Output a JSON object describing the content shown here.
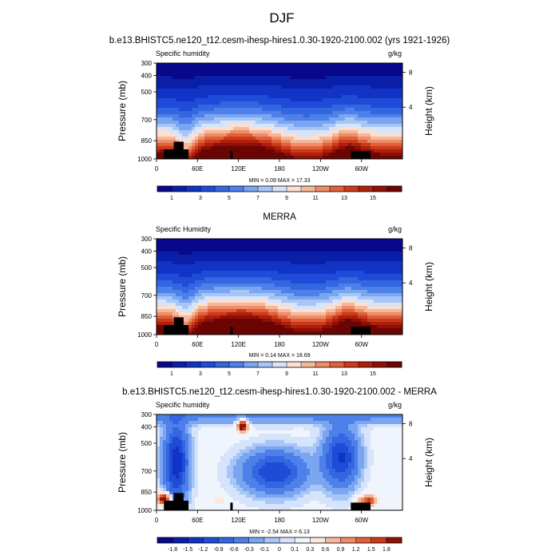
{
  "figure_title": "DJF",
  "chart_data": [
    {
      "type": "contour",
      "title": "b.e13.BHISTC5.ne120_t12.cesm-ihesp-hires1.0.30-1920-2100.002 (yrs 1921-1926)",
      "left_string": "Specific humidity",
      "right_string": "g/kg",
      "ylabel": "Pressure (mb)",
      "ylabel_right": "Height (km)",
      "y_ticks": [
        "300",
        "400",
        "500",
        "700",
        "850",
        "1000"
      ],
      "y_right_ticks": [
        "8",
        "4"
      ],
      "x_ticks": [
        "0",
        "60E",
        "120E",
        "180",
        "120W",
        "60W"
      ],
      "min_max": "MIN =   0.09  MAX =  17.33",
      "min": 0.09,
      "max": 17.33,
      "colorbar_labels": [
        "1",
        "3",
        "5",
        "7",
        "9",
        "11",
        "13",
        "15"
      ],
      "colorbar_levels": [
        0.5,
        1,
        2,
        3,
        4,
        5,
        6,
        7,
        8,
        9,
        10,
        11,
        12,
        13,
        14,
        15
      ],
      "colors": [
        "#08088a",
        "#0a1fa8",
        "#1133c6",
        "#1e4bd8",
        "#3366e0",
        "#4d80e8",
        "#7aa5f0",
        "#a7c6f7",
        "#d6e4fb",
        "#fbe0d2",
        "#f6b89b",
        "#ee8d66",
        "#e0603c",
        "#cc3a1c",
        "#b01f0c",
        "#8e1006",
        "#6a0503"
      ]
    },
    {
      "type": "contour",
      "title": "MERRA",
      "left_string": "Specific Humidity",
      "right_string": "g/kg",
      "ylabel": "Pressure (mb)",
      "ylabel_right": "Height (km)",
      "y_ticks": [
        "300",
        "400",
        "500",
        "700",
        "850",
        "1000"
      ],
      "y_right_ticks": [
        "8",
        "4"
      ],
      "x_ticks": [
        "0",
        "60E",
        "120E",
        "180",
        "120W",
        "60W"
      ],
      "min_max": "MIN =   0.14  MAX =  18.69",
      "min": 0.14,
      "max": 18.69,
      "colorbar_labels": [
        "1",
        "3",
        "5",
        "7",
        "9",
        "11",
        "13",
        "15"
      ],
      "colorbar_levels": [
        0.5,
        1,
        2,
        3,
        4,
        5,
        6,
        7,
        8,
        9,
        10,
        11,
        12,
        13,
        14,
        15
      ],
      "colors": [
        "#08088a",
        "#0a1fa8",
        "#1133c6",
        "#1e4bd8",
        "#3366e0",
        "#4d80e8",
        "#7aa5f0",
        "#a7c6f7",
        "#d6e4fb",
        "#fbe0d2",
        "#f6b89b",
        "#ee8d66",
        "#e0603c",
        "#cc3a1c",
        "#b01f0c",
        "#8e1006",
        "#6a0503"
      ]
    },
    {
      "type": "contour",
      "title": "b.e13.BHISTC5.ne120_t12.cesm-ihesp-hires1.0.30-1920-2100.002 - MERRA",
      "left_string": "Specific humidity",
      "right_string": "g/kg",
      "ylabel": "Pressure (mb)",
      "ylabel_right": "Height (km)",
      "y_ticks": [
        "300",
        "400",
        "500",
        "700",
        "850",
        "1000"
      ],
      "y_right_ticks": [
        "8",
        "4"
      ],
      "x_ticks": [
        "0",
        "60E",
        "120E",
        "180",
        "120W",
        "60W"
      ],
      "min_max": "MIN =  -2.54  MAX =   6.13",
      "min": -2.54,
      "max": 6.13,
      "colorbar_labels": [
        "-1.8",
        "-1.5",
        "-1.2",
        "-0.9",
        "-0.6",
        "-0.3",
        "-0.1",
        "0",
        "0.1",
        "0.3",
        "0.6",
        "0.9",
        "1.2",
        "1.5",
        "1.8"
      ],
      "colorbar_levels": [
        -1.8,
        -1.5,
        -1.2,
        -0.9,
        -0.6,
        -0.3,
        -0.1,
        0,
        0.1,
        0.3,
        0.6,
        0.9,
        1.2,
        1.5,
        1.8
      ],
      "colors": [
        "#08088a",
        "#0a1fa8",
        "#1133c6",
        "#1e4bd8",
        "#3366e0",
        "#4d80e8",
        "#7aa5f0",
        "#a7c6f7",
        "#d6e4fb",
        "#f0f5fd",
        "#fbe8de",
        "#f6b89b",
        "#ee8d66",
        "#e0603c",
        "#cc3a1c",
        "#8e1006"
      ]
    }
  ]
}
